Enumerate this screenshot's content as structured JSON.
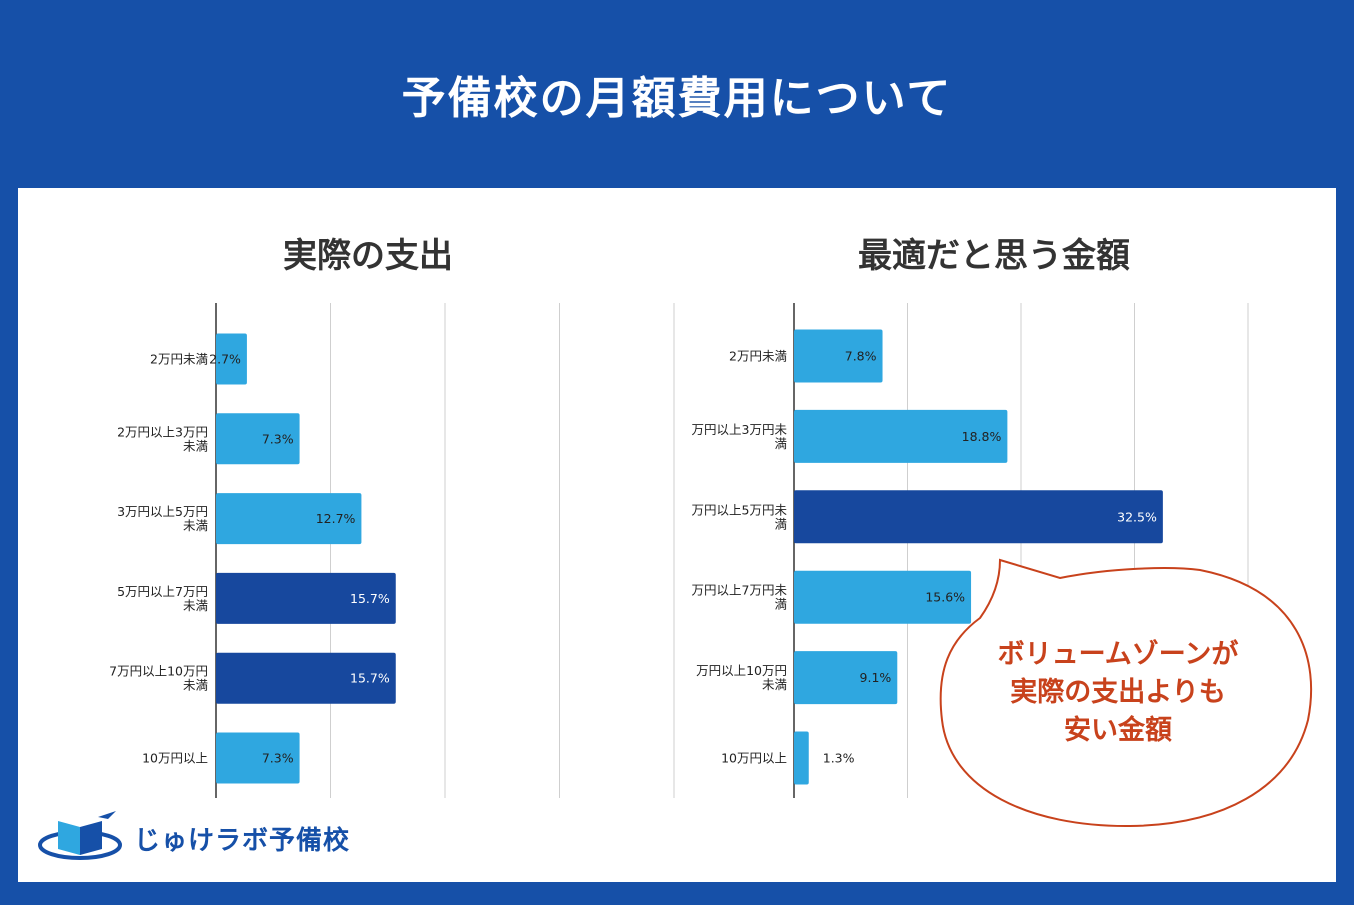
{
  "header": {
    "title": "予備校の月額費用について"
  },
  "colors": {
    "light": "#2fa7e0",
    "dark": "#17489e",
    "callout": "#c8421c",
    "background": "#1650a8"
  },
  "chart_data": [
    {
      "type": "bar",
      "orientation": "horizontal",
      "title": "実際の支出",
      "categories": [
        [
          "2万円未満"
        ],
        [
          "2万円以上3万円",
          "未満"
        ],
        [
          "3万円以上5万円",
          "未満"
        ],
        [
          "5万円以上7万円",
          "未満"
        ],
        [
          "7万円以上10万円",
          "未満"
        ],
        [
          "10万円以上"
        ]
      ],
      "values": [
        2.7,
        7.3,
        12.7,
        15.7,
        15.7,
        7.3
      ],
      "labels": [
        "2.7%",
        "7.3%",
        "12.7%",
        "15.7%",
        "15.7%",
        "7.3%"
      ],
      "highlight": [
        false,
        false,
        false,
        true,
        true,
        false
      ],
      "xlim": [
        0,
        40
      ],
      "grid": true
    },
    {
      "type": "bar",
      "orientation": "horizontal",
      "title": "最適だと思う金額",
      "categories": [
        [
          "2万円未満"
        ],
        [
          "万円以上3万円未",
          "満"
        ],
        [
          "万円以上5万円未",
          "満"
        ],
        [
          "万円以上7万円未",
          "満"
        ],
        [
          "万円以上10万円",
          "未満"
        ],
        [
          "10万円以上"
        ]
      ],
      "values": [
        7.8,
        18.8,
        32.5,
        15.6,
        9.1,
        1.3
      ],
      "labels": [
        "7.8%",
        "18.8%",
        "32.5%",
        "15.6%",
        "9.1%",
        "1.3%"
      ],
      "highlight": [
        false,
        false,
        true,
        false,
        false,
        false
      ],
      "xlim": [
        0,
        40
      ],
      "grid": true
    }
  ],
  "callout": {
    "lines": [
      "ボリュームゾーンが",
      "実際の支出よりも",
      "安い金額"
    ]
  },
  "logo": {
    "text": "じゅけラボ予備校",
    "icon": "book-icon"
  }
}
